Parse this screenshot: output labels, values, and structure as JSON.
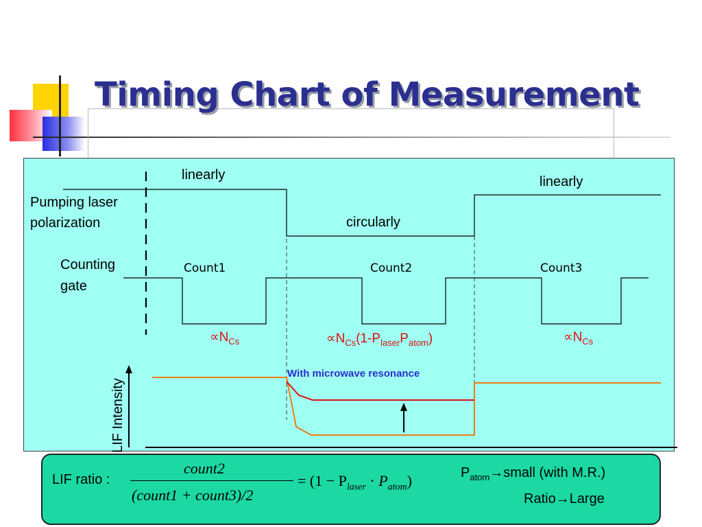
{
  "slide": {
    "title": "Timing Chart of Measurement"
  },
  "diagram": {
    "pumping_label_1": "Pumping laser",
    "pumping_label_2": "polarization",
    "state_linear_1": "linearly",
    "state_circular": "circularly",
    "state_linear_2": "linearly",
    "gate_label_1": "Counting",
    "gate_label_2": "gate",
    "count1": "Count1",
    "count2": "Count2",
    "count3": "Count3",
    "prop1": {
      "symbol": "∝N",
      "sub": "Cs"
    },
    "prop2": {
      "symbol": "∝N",
      "sub1": "Cs",
      "mid": "(1-P",
      "sub2": "laser",
      "p": "P",
      "sub3": "atom",
      "end": ")"
    },
    "prop3": {
      "symbol": "∝N",
      "sub": "Cs"
    },
    "resonance_label": "With microwave resonance",
    "lif_axis_label": "LIF Intensity",
    "colors": {
      "panel": "#9ffff2",
      "signal_red": "#dd1010",
      "signal_orange": "#f07c10",
      "resonance_text": "#2a2fd0",
      "formula_box": "#1cd9a4",
      "title": "#2b2f8f"
    }
  },
  "formula": {
    "prefix": "LIF ratio :",
    "numerator": "count2",
    "denominator": "(count1 + count3)/2",
    "rhs": "= (1 − P",
    "rhs_sub1": "laser",
    "dot": "·",
    "rhs_p": "P",
    "rhs_sub2": "atom",
    "rhs_end": ")",
    "note1_p": "P",
    "note1_sub": "atom",
    "note1_rest": "→small (with M.R.)",
    "note2": "Ratio→Large"
  }
}
